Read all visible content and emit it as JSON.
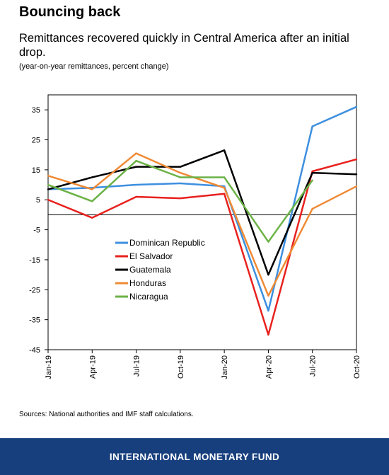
{
  "header": {
    "title": "Bouncing back",
    "subtitle": "Remittances recovered quickly in Central America after an initial drop.",
    "note": "(year-on-year remittances, percent change)"
  },
  "source": "Sources: National authorities and IMF staff calculations.",
  "footer": {
    "org": "INTERNATIONAL MONETARY FUND"
  },
  "chart_data": {
    "type": "line",
    "categories": [
      "Jan-19",
      "Apr-19",
      "Jul-19",
      "Oct-19",
      "Jan-20",
      "Apr-20",
      "Jul-20",
      "Oct-20"
    ],
    "yticks": [
      35,
      25,
      15,
      5,
      -5,
      -15,
      -25,
      -35,
      -45
    ],
    "ylim": [
      -45,
      40
    ],
    "grid": false,
    "legend_position": "left-middle",
    "series": [
      {
        "name": "Dominican Republic",
        "color": "#3d8fdf",
        "values": [
          8.5,
          9,
          10,
          10.5,
          9.5,
          -32,
          29.5,
          36
        ]
      },
      {
        "name": "El Salvador",
        "color": "#e8211e",
        "values": [
          5,
          -1,
          6,
          5.5,
          7,
          -40,
          14.5,
          18.5
        ]
      },
      {
        "name": "Guatemala",
        "color": "#000000",
        "values": [
          8.5,
          12.5,
          16,
          16,
          21.5,
          -20,
          14,
          13.5
        ]
      },
      {
        "name": "Honduras",
        "color": "#ef8a35",
        "values": [
          13,
          8.5,
          20.5,
          14,
          9,
          -27,
          2,
          9.5
        ]
      },
      {
        "name": "Nicaragua",
        "color": "#6cb247",
        "values": [
          10,
          4.5,
          18,
          12.5,
          12.5,
          -9,
          11.5,
          null
        ]
      }
    ]
  }
}
